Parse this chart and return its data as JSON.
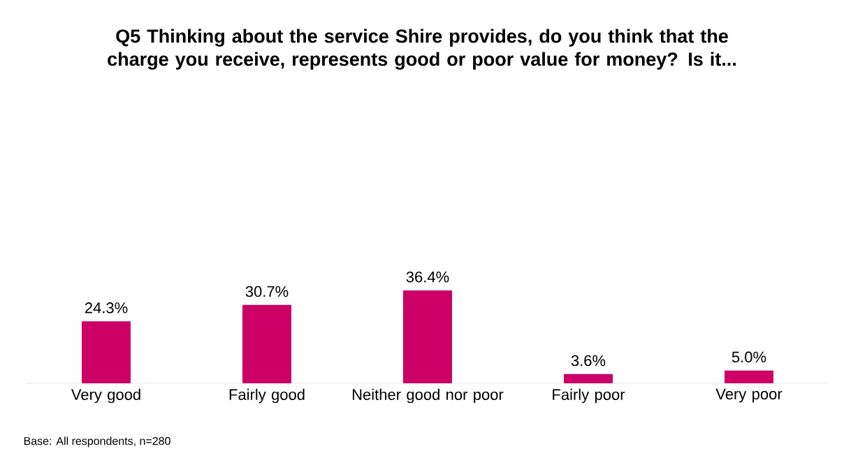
{
  "chart_data": {
    "type": "bar",
    "title": "Q5 Thinking about the service Shire provides, do you think that the charge you receive, represents good or poor value for money? Is it...",
    "categories": [
      "Very good",
      "Fairly good",
      "Neither good nor poor",
      "Fairly poor",
      "Very poor"
    ],
    "values": [
      24.3,
      30.7,
      36.4,
      3.6,
      5.0
    ],
    "value_labels": [
      "24.3%",
      "30.7%",
      "36.4%",
      "3.6%",
      "5.0%"
    ],
    "color": "#cc0066",
    "tick_labels": "x",
    "annotations": [
      "Base: All respondents, n=280"
    ]
  }
}
